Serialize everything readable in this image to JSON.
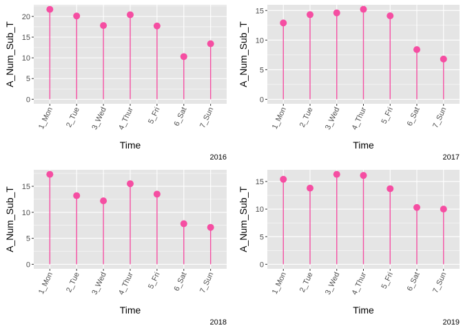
{
  "style": {
    "panel_bg": "#e5e5e5",
    "grid_color": "#ffffff",
    "point_color": "#f54ea2",
    "text_color": "#4d4d4d",
    "title_color": "#000000"
  },
  "chart_data": [
    {
      "type": "lollipop",
      "caption": "2016",
      "xlabel": "Time",
      "ylabel": "A_Num_Sub_T",
      "categories": [
        "1_Mon",
        "2_Tue",
        "3_Wed",
        "4_Thur",
        "5_Fri",
        "6_Sat",
        "7_Sun"
      ],
      "values": [
        21.7,
        20.1,
        17.8,
        20.4,
        17.7,
        10.3,
        13.4
      ],
      "ylim": [
        -1.1,
        22.8
      ],
      "yticks": [
        0,
        5,
        10,
        15,
        20
      ],
      "grid": true
    },
    {
      "type": "lollipop",
      "caption": "2017",
      "xlabel": "Time",
      "ylabel": "A_Num_Sub_T",
      "categories": [
        "1_Mon",
        "2_Tue",
        "3_Wed",
        "4_Thur",
        "5_Fri",
        "6_Sat",
        "7_Sun"
      ],
      "values": [
        12.9,
        14.3,
        14.6,
        15.2,
        14.1,
        8.4,
        6.8
      ],
      "ylim": [
        -0.76,
        15.96
      ],
      "yticks": [
        0,
        5,
        10,
        15
      ],
      "grid": true
    },
    {
      "type": "lollipop",
      "caption": "2018",
      "xlabel": "Time",
      "ylabel": "A_Num_Sub_T",
      "categories": [
        "1_Mon",
        "2_Tue",
        "3_Wed",
        "4_Thur",
        "5_Fri",
        "6_Sat",
        "7_Sun"
      ],
      "values": [
        17.3,
        13.2,
        12.2,
        15.5,
        13.5,
        7.8,
        7.1
      ],
      "ylim": [
        -0.87,
        18.17
      ],
      "yticks": [
        0,
        5,
        10,
        15
      ],
      "grid": true
    },
    {
      "type": "lollipop",
      "caption": "2019",
      "xlabel": "Time",
      "ylabel": "A_Num_Sub_T",
      "categories": [
        "1_Mon",
        "2_Tue",
        "3_Wed",
        "4_Thur",
        "5_Fri",
        "6_Sat",
        "7_Sun"
      ],
      "values": [
        15.4,
        13.8,
        16.3,
        16.1,
        13.7,
        10.3,
        10.0
      ],
      "ylim": [
        -0.82,
        17.12
      ],
      "yticks": [
        0,
        5,
        10,
        15
      ],
      "grid": true
    }
  ]
}
